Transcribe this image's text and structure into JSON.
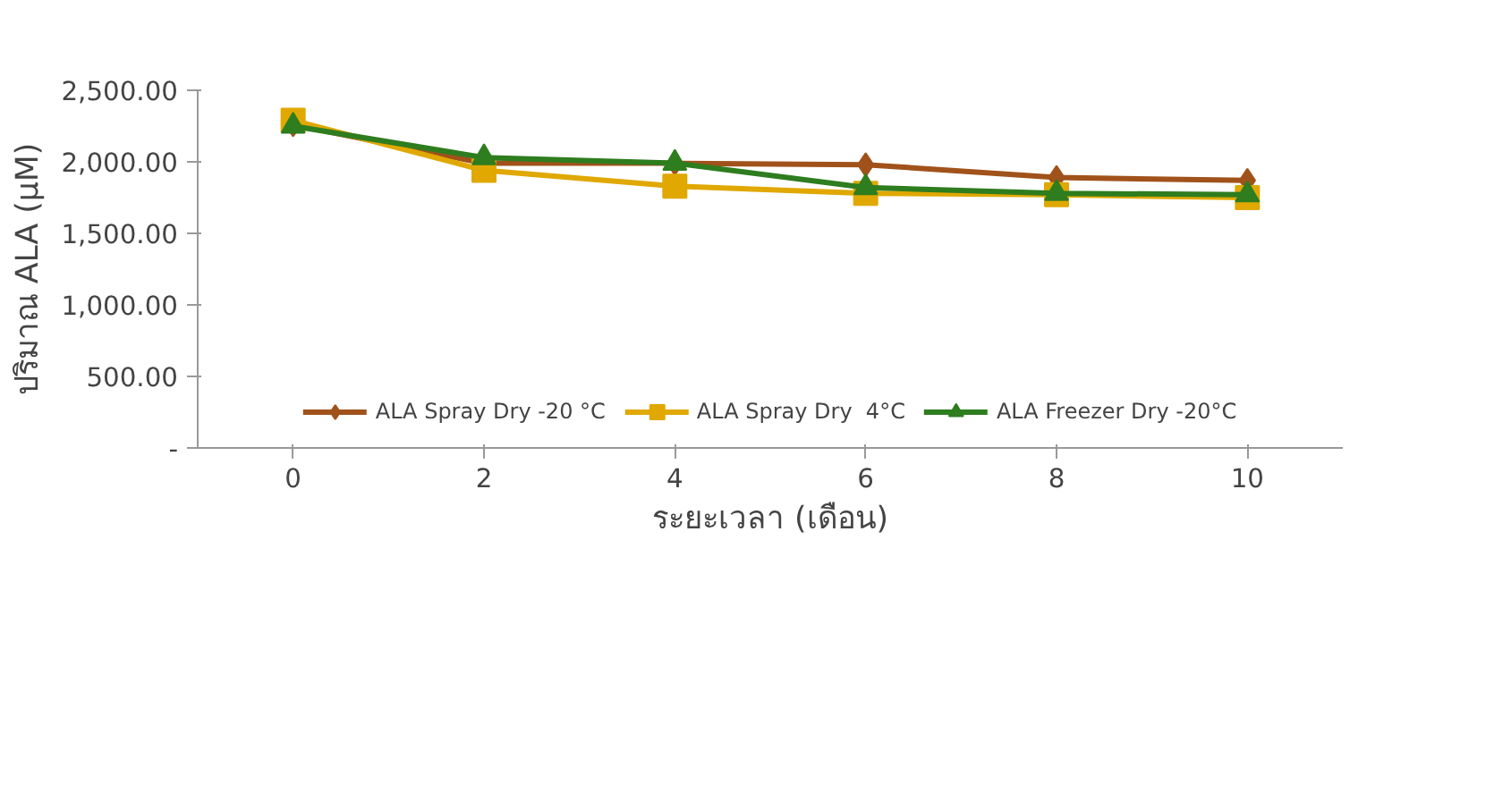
{
  "chart_data": {
    "type": "line",
    "xlabel": "ระยะเวลา (เดือน)",
    "ylabel": "ปริมาณ ALA (µM)",
    "categories": [
      "0",
      "2",
      "4",
      "6",
      "8",
      "10"
    ],
    "series": [
      {
        "name": "ALA Spray Dry -20 °C",
        "color": "#a0521a",
        "marker": "diamond",
        "values": [
          2260,
          1990,
          1990,
          1980,
          1890,
          1870
        ]
      },
      {
        "name": "ALA Spray Dry  4°C",
        "color": "#e0a800",
        "marker": "square",
        "values": [
          2290,
          1940,
          1830,
          1780,
          1770,
          1750
        ]
      },
      {
        "name": "ALA Freezer Dry -20°C",
        "color": "#2e7d1f",
        "marker": "triangle",
        "values": [
          2250,
          2030,
          1990,
          1820,
          1780,
          1770
        ]
      }
    ],
    "ylim": [
      0,
      2500
    ],
    "yticks": [
      {
        "value": 0,
        "label": "-"
      },
      {
        "value": 500,
        "label": "500.00"
      },
      {
        "value": 1000,
        "label": "1,000.00"
      },
      {
        "value": 1500,
        "label": "1,500.00"
      },
      {
        "value": 2000,
        "label": "2,000.00"
      },
      {
        "value": 2500,
        "label": "2,500.00"
      }
    ],
    "grid": false,
    "legend": "bottom",
    "line_style": "solid"
  }
}
